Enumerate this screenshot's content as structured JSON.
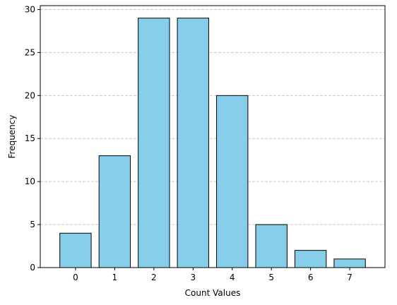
{
  "chart_data": {
    "type": "bar",
    "categories": [
      "0",
      "1",
      "2",
      "3",
      "4",
      "5",
      "6",
      "7"
    ],
    "values": [
      4,
      13,
      29,
      29,
      20,
      5,
      2,
      1
    ],
    "title": "",
    "xlabel": "Count Values",
    "ylabel": "Frequency",
    "ylim": [
      0,
      30.45
    ],
    "yticks": [
      0,
      5,
      10,
      15,
      20,
      25,
      30
    ],
    "grid": "y dashed",
    "legend": "none",
    "colors": {
      "bar_fill": "#87CEEB",
      "bar_edge": "#000000",
      "grid": "#c8c8c8"
    }
  }
}
